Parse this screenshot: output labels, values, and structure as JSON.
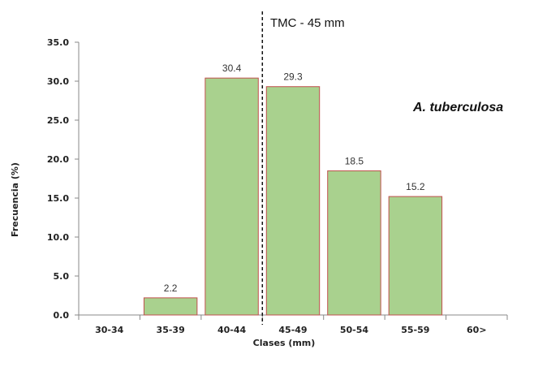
{
  "chart_data": {
    "type": "bar",
    "categories": [
      "30-34",
      "35-39",
      "40-44",
      "45-49",
      "50-54",
      "55-59",
      "60>"
    ],
    "values": [
      null,
      2.2,
      30.4,
      29.3,
      18.5,
      15.2,
      null
    ],
    "data_labels": [
      "",
      "2.2",
      "30.4",
      "29.3",
      "18.5",
      "15.2",
      ""
    ],
    "ylabel": "Frecuencia (%)",
    "xlabel": "Clases (mm)",
    "ylim": [
      0,
      35
    ],
    "yticks": [
      0,
      5,
      10,
      15,
      20,
      25,
      30,
      35
    ],
    "ytick_labels": [
      "0.0",
      "5.0",
      "10.0",
      "15.0",
      "20.0",
      "25.0",
      "30.0",
      "35.0"
    ],
    "grid": false,
    "annotations": {
      "reference_line_label": "TMC - 45 mm",
      "reference_line_x": 45,
      "species": "A. tuberculosa"
    },
    "colors": {
      "bar_fill": "#a9d18e",
      "bar_stroke": "#c0504d",
      "axis": "#888888"
    }
  }
}
